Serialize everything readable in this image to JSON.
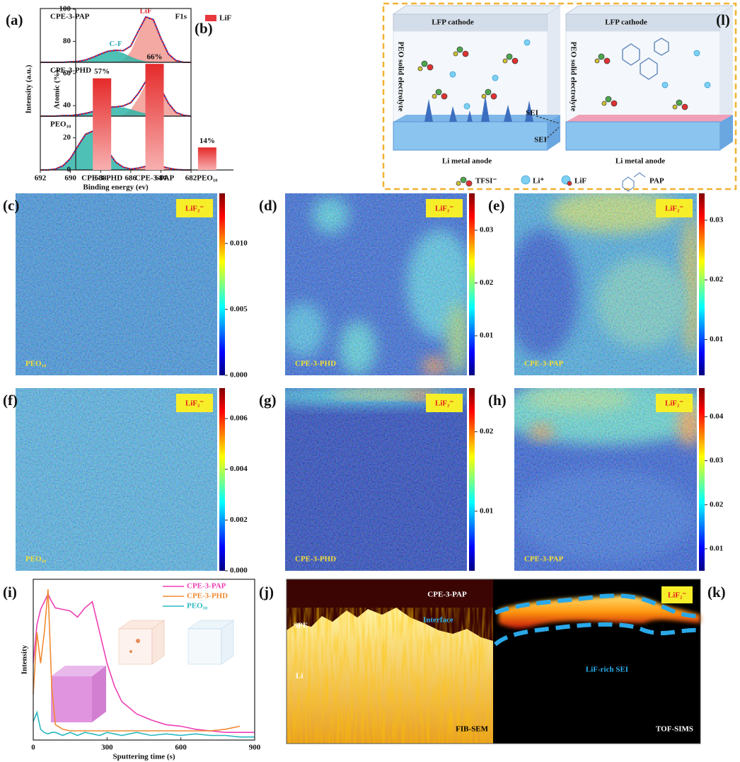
{
  "chart_data": [
    {
      "type": "xps",
      "panel_label": "(a)",
      "annotation": "F1s",
      "xlabel": "Binding energy (ev)",
      "ylabel": "Intensity (a.u.)",
      "xlim": [
        692,
        682
      ],
      "xticks": [
        692,
        690,
        688,
        686,
        684,
        682
      ],
      "ylim": [
        0,
        1.1
      ],
      "x": [
        692,
        691.5,
        691,
        690.5,
        690,
        689.5,
        689,
        688.5,
        688,
        687.5,
        687,
        686.5,
        686,
        685.5,
        685,
        684.5,
        684,
        683.5,
        683,
        682.5,
        682
      ],
      "panels": [
        {
          "name": "CPE-3-PAP",
          "series": [
            {
              "name": "LiF",
              "color": "#f29a93",
              "label_color": "#e0262b",
              "fill": true,
              "values": [
                0,
                0,
                0,
                0,
                0,
                0,
                0,
                0,
                0,
                0,
                0.01,
                0.05,
                0.23,
                0.61,
                0.96,
                0.91,
                0.52,
                0.18,
                0.04,
                0,
                0
              ]
            },
            {
              "name": "C-F",
              "color": "#2fb5a8",
              "label_color": "#2fa9b5",
              "fill": true,
              "values": [
                0,
                0,
                0,
                0,
                0.01,
                0.02,
                0.05,
                0.11,
                0.18,
                0.24,
                0.25,
                0.2,
                0.12,
                0.06,
                0.02,
                0.01,
                0,
                0,
                0,
                0,
                0
              ]
            },
            {
              "color": "#1f3fbf",
              "dash_color": "#e0262b",
              "fill": false,
              "values": [
                0,
                0,
                0,
                0,
                0.01,
                0.02,
                0.05,
                0.11,
                0.18,
                0.24,
                0.26,
                0.25,
                0.35,
                0.67,
                0.98,
                0.92,
                0.52,
                0.18,
                0.04,
                0,
                0
              ]
            }
          ]
        },
        {
          "name": "CPE-3-PHD",
          "series": [
            {
              "color": "#f29a93",
              "fill": true,
              "values": [
                0,
                0,
                0,
                0,
                0,
                0,
                0,
                0,
                0,
                0,
                0,
                0.03,
                0.14,
                0.39,
                0.69,
                0.79,
                0.58,
                0.27,
                0.08,
                0.02,
                0
              ]
            },
            {
              "color": "#2fb5a8",
              "fill": true,
              "values": [
                0,
                0,
                0,
                0.01,
                0.01,
                0.03,
                0.06,
                0.1,
                0.15,
                0.19,
                0.2,
                0.19,
                0.15,
                0.1,
                0.06,
                0.03,
                0.01,
                0.01,
                0,
                0,
                0
              ]
            },
            {
              "color": "#1f3fbf",
              "dash_color": "#e0262b",
              "fill": false,
              "values": [
                0,
                0,
                0,
                0.01,
                0.01,
                0.03,
                0.06,
                0.1,
                0.15,
                0.19,
                0.2,
                0.22,
                0.29,
                0.49,
                0.75,
                0.82,
                0.59,
                0.28,
                0.08,
                0.02,
                0
              ]
            }
          ]
        },
        {
          "name": "PEO₁₀",
          "series": [
            {
              "color": "#2fb5a8",
              "fill": true,
              "values": [
                0,
                0,
                0.02,
                0.09,
                0.25,
                0.52,
                0.77,
                0.84,
                0.68,
                0.4,
                0.17,
                0.06,
                0.01,
                0,
                0,
                0,
                0,
                0,
                0,
                0,
                0
              ]
            },
            {
              "color": "#f29a93",
              "fill": true,
              "values": [
                0,
                0,
                0,
                0,
                0,
                0,
                0,
                0,
                0,
                0,
                0,
                0,
                0.01,
                0.04,
                0.08,
                0.1,
                0.08,
                0.04,
                0.01,
                0,
                0
              ]
            },
            {
              "color": "#1f3fbf",
              "dash_color": "#e0262b",
              "fill": false,
              "values": [
                0,
                0,
                0.02,
                0.09,
                0.25,
                0.52,
                0.77,
                0.84,
                0.68,
                0.4,
                0.17,
                0.06,
                0.02,
                0.04,
                0.08,
                0.1,
                0.08,
                0.04,
                0.01,
                0,
                0
              ]
            }
          ]
        }
      ]
    },
    {
      "type": "bar",
      "panel_label": "(b)",
      "ylabel": "Atomic (%)",
      "categories": [
        "CPE-3-PHD",
        "CPE-3-PAP",
        "PEO₁₀"
      ],
      "series": [
        {
          "name": "LiF",
          "color": "#e8383d",
          "values": [
            57,
            66,
            14
          ],
          "value_labels": [
            "57%",
            "66%",
            "14%"
          ]
        }
      ],
      "ylim": [
        0,
        100
      ],
      "yticks": [
        0,
        20,
        40,
        60,
        80,
        100
      ],
      "legend": "top-right"
    },
    {
      "type": "heatmap",
      "panel_label": "(c)",
      "label": "LiF₂⁻",
      "sample": "PEO₁₀",
      "zlim": [
        0,
        0.0138
      ],
      "zticks": [
        {
          "value": 0,
          "label": "0.000"
        },
        {
          "value": 0.005,
          "label": "0.005"
        },
        {
          "value": 0.01,
          "label": "0.010"
        }
      ]
    },
    {
      "type": "heatmap",
      "panel_label": "(d)",
      "label": "LiF₂⁻",
      "sample": "CPE-3-PHD",
      "zlim": [
        0.0025,
        0.037
      ],
      "zticks": [
        0.01,
        0.02,
        0.03
      ]
    },
    {
      "type": "heatmap",
      "panel_label": "(e)",
      "label": "LiF₂⁻",
      "sample": "CPE-3-PAP",
      "zlim": [
        0.004,
        0.0345
      ],
      "zticks": [
        0.01,
        0.02,
        0.03
      ]
    },
    {
      "type": "heatmap",
      "panel_label": "(f)",
      "label": "LiF₂⁻",
      "sample": "PEO₁₀",
      "zlim": [
        0,
        0.0072
      ],
      "zticks": [
        {
          "value": 0,
          "label": "0.000"
        },
        {
          "value": 0.002,
          "label": "0.002"
        },
        {
          "value": 0.004,
          "label": "0.004"
        },
        {
          "value": 0.006,
          "label": "0.006"
        }
      ]
    },
    {
      "type": "heatmap",
      "panel_label": "(g)",
      "label": "LiF₂⁻",
      "sample": "CPE-3-PHD",
      "zlim": [
        0.0025,
        0.0255
      ],
      "zticks": [
        0.01,
        0.02
      ]
    },
    {
      "type": "heatmap",
      "panel_label": "(h)",
      "label": "LiF₂⁻",
      "sample": "CPE-3-PAP",
      "zlim": [
        0.005,
        0.0465
      ],
      "zticks": [
        0.01,
        0.02,
        0.03,
        0.04
      ]
    },
    {
      "type": "line",
      "panel_label": "(i)",
      "xlabel": "Sputtering time (s)",
      "ylabel": "Intensity",
      "legend": "top-right",
      "xlim": [
        0,
        900
      ],
      "xticks": [
        0,
        300,
        600,
        900
      ],
      "ylim": [
        0,
        1
      ],
      "x": [
        0,
        15,
        30,
        45,
        60,
        75,
        90,
        120,
        150,
        180,
        210,
        240,
        270,
        300,
        330,
        360,
        420,
        480,
        540,
        600,
        660,
        720,
        780,
        840,
        900
      ],
      "series": [
        {
          "name": "CPE-3-PAP",
          "color": "#ee3fb6",
          "values": [
            0.5,
            0.75,
            0.85,
            0.9,
            0.95,
            0.9,
            0.86,
            0.85,
            0.84,
            0.8,
            0.86,
            0.9,
            0.7,
            0.5,
            0.35,
            0.25,
            0.17,
            0.13,
            0.1,
            0.09,
            0.07,
            0.06,
            0.05,
            0.05,
            0.05
          ]
        },
        {
          "name": "CPE-3-PHD",
          "color": "#f08a32",
          "values": [
            0.3,
            0.7,
            0.5,
            0.7,
            0.98,
            0.35,
            0.1,
            0.07,
            0.06,
            0.06,
            0.06,
            0.06,
            0.06,
            0.06,
            0.06,
            0.06,
            0.06,
            0.06,
            0.06,
            0.06,
            0.06,
            0.06,
            0.07,
            0.09,
            null
          ]
        },
        {
          "name": "PEO₁₀",
          "color": "#28b8c0",
          "values": [
            0.12,
            0.18,
            0.07,
            0.05,
            0.04,
            0.05,
            0.05,
            0.03,
            0.05,
            0.03,
            0.05,
            0.04,
            0.03,
            0.05,
            0.04,
            0.03,
            0.05,
            0.03,
            0.04,
            0.03,
            0.04,
            0.03,
            0.03,
            0.02,
            0.02
          ]
        }
      ]
    }
  ],
  "schematic": {
    "panel_label": "(l)",
    "cathode_labels": [
      "LFP cathode",
      "LFP cathode"
    ],
    "electrolyte_labels": [
      "PEO solid electrolyte",
      "PEO solid electrolyte"
    ],
    "sei_labels": [
      "SEI",
      "SEI"
    ],
    "anode_labels": [
      "Li metal anode",
      "Li metal anode"
    ],
    "legend": [
      "TFSI⁻",
      "Li⁺",
      "LiF",
      "PAP"
    ]
  },
  "sims": {
    "left_label": "(j)",
    "right_label": "(k)",
    "sample": "CPE-3-PAP",
    "spe": "SPE",
    "interface": "Interface",
    "li": "Li",
    "ion": "LiF₂⁻",
    "sei": "LiF-rich SEI",
    "left_method": "FIB-SEM",
    "right_method": "TOF-SIMS"
  }
}
